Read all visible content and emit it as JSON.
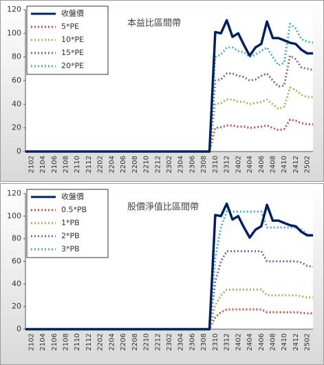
{
  "chart_data": [
    {
      "type": "line",
      "title": "本益比區間帶",
      "categories": [
        null,
        "2102",
        null,
        "2104",
        null,
        "2106",
        null,
        "2108",
        null,
        "2110",
        null,
        "2112",
        null,
        "2202",
        null,
        "2204",
        null,
        "2206",
        null,
        "2208",
        null,
        "2210",
        null,
        "2212",
        null,
        "2302",
        null,
        "2304",
        null,
        "2306",
        null,
        "2308",
        null,
        "2310",
        null,
        "2312",
        null,
        "2402",
        null,
        "2404",
        null,
        "2406",
        null,
        "2408",
        null,
        "2410",
        null,
        "2412",
        null,
        "2502",
        null
      ],
      "ylim": [
        0,
        120
      ],
      "yticks": [
        0,
        20,
        40,
        60,
        80,
        100,
        120
      ],
      "series": [
        {
          "name": "收盤價",
          "color": "#002060",
          "dash": false,
          "values": [
            0,
            0,
            0,
            0,
            0,
            0,
            0,
            0,
            0,
            0,
            0,
            0,
            0,
            0,
            0,
            0,
            0,
            0,
            0,
            0,
            0,
            0,
            0,
            0,
            0,
            0,
            0,
            0,
            0,
            0,
            0,
            0,
            0,
            101,
            100,
            111,
            97,
            100,
            90,
            81,
            88,
            91,
            110,
            96,
            96,
            94,
            92,
            91,
            86,
            83,
            83
          ]
        },
        {
          "name": "5*PE",
          "color": "#c0504d",
          "dash": true,
          "values": [
            0,
            0,
            0,
            0,
            0,
            0,
            0,
            0,
            0,
            0,
            0,
            0,
            0,
            0,
            0,
            0,
            0,
            0,
            0,
            0,
            0,
            0,
            0,
            0,
            0,
            0,
            0,
            0,
            0,
            0,
            0,
            0,
            0,
            20,
            20.5,
            22,
            22,
            21,
            21,
            20,
            20.5,
            21,
            22,
            20,
            18,
            19,
            27,
            26,
            24,
            23,
            23
          ]
        },
        {
          "name": "10*PE",
          "color": "#9bbb59",
          "dash": true,
          "values": [
            0,
            0,
            0,
            0,
            0,
            0,
            0,
            0,
            0,
            0,
            0,
            0,
            0,
            0,
            0,
            0,
            0,
            0,
            0,
            0,
            0,
            0,
            0,
            0,
            0,
            0,
            0,
            0,
            0,
            0,
            0,
            0,
            0,
            40,
            41,
            44,
            44,
            42,
            42,
            40,
            41,
            42,
            44,
            40,
            36,
            38,
            54,
            52,
            48,
            46,
            46
          ]
        },
        {
          "name": "15*PE",
          "color": "#8064a2",
          "dash": true,
          "values": [
            0,
            0,
            0,
            0,
            0,
            0,
            0,
            0,
            0,
            0,
            0,
            0,
            0,
            0,
            0,
            0,
            0,
            0,
            0,
            0,
            0,
            0,
            0,
            0,
            0,
            0,
            0,
            0,
            0,
            0,
            0,
            0,
            0,
            60,
            61,
            66,
            66,
            64,
            63,
            60,
            61,
            64,
            66,
            60,
            55,
            56,
            81,
            78,
            71,
            70,
            69
          ]
        },
        {
          "name": "20*PE",
          "color": "#4bacc6",
          "dash": true,
          "values": [
            0,
            0,
            0,
            0,
            0,
            0,
            0,
            0,
            0,
            0,
            0,
            0,
            0,
            0,
            0,
            0,
            0,
            0,
            0,
            0,
            0,
            0,
            0,
            0,
            0,
            0,
            0,
            0,
            0,
            0,
            0,
            0,
            0,
            80,
            82,
            88,
            88,
            85,
            84,
            80,
            82,
            85,
            88,
            80,
            73,
            75,
            108,
            104,
            95,
            93,
            92
          ]
        }
      ]
    },
    {
      "type": "line",
      "title": "股價淨值比區間帶",
      "categories": [
        null,
        "2102",
        null,
        "2104",
        null,
        "2106",
        null,
        "2108",
        null,
        "2110",
        null,
        "2112",
        null,
        "2202",
        null,
        "2204",
        null,
        "2206",
        null,
        "2208",
        null,
        "2210",
        null,
        "2212",
        null,
        "2302",
        null,
        "2304",
        null,
        "2306",
        null,
        "2308",
        null,
        "2310",
        null,
        "2312",
        null,
        "2402",
        null,
        "2404",
        null,
        "2406",
        null,
        "2408",
        null,
        "2410",
        null,
        "2412",
        null,
        "2502",
        null
      ],
      "ylim": [
        0,
        120
      ],
      "yticks": [
        0,
        20,
        40,
        60,
        80,
        100,
        120
      ],
      "series": [
        {
          "name": "收盤價",
          "color": "#002060",
          "dash": false,
          "values": [
            0,
            0,
            0,
            0,
            0,
            0,
            0,
            0,
            0,
            0,
            0,
            0,
            0,
            0,
            0,
            0,
            0,
            0,
            0,
            0,
            0,
            0,
            0,
            0,
            0,
            0,
            0,
            0,
            0,
            0,
            0,
            0,
            0,
            101,
            100,
            111,
            97,
            100,
            90,
            81,
            88,
            91,
            110,
            96,
            96,
            94,
            92,
            91,
            86,
            83,
            83
          ]
        },
        {
          "name": "0.5*PB",
          "color": "#c0504d",
          "dash": true,
          "values": [
            0,
            0,
            0,
            0,
            0,
            0,
            0,
            0,
            0,
            0,
            0,
            0,
            0,
            0,
            0,
            0,
            0,
            0,
            0,
            0,
            0,
            0,
            0,
            0,
            0,
            0,
            0,
            0,
            0,
            0,
            0,
            0,
            0,
            10.5,
            15,
            17.5,
            17.5,
            17.5,
            17.5,
            17.5,
            17.5,
            17.5,
            15,
            15,
            15,
            15,
            15,
            15,
            14.5,
            14,
            14
          ]
        },
        {
          "name": "1*PB",
          "color": "#9bbb59",
          "dash": true,
          "values": [
            0,
            0,
            0,
            0,
            0,
            0,
            0,
            0,
            0,
            0,
            0,
            0,
            0,
            0,
            0,
            0,
            0,
            0,
            0,
            0,
            0,
            0,
            0,
            0,
            0,
            0,
            0,
            0,
            0,
            0,
            0,
            0,
            0,
            21,
            30,
            35,
            35,
            35,
            35,
            35,
            35,
            35,
            30,
            30,
            30,
            30,
            30,
            30,
            29,
            28,
            28
          ]
        },
        {
          "name": "2*PB",
          "color": "#8064a2",
          "dash": true,
          "values": [
            0,
            0,
            0,
            0,
            0,
            0,
            0,
            0,
            0,
            0,
            0,
            0,
            0,
            0,
            0,
            0,
            0,
            0,
            0,
            0,
            0,
            0,
            0,
            0,
            0,
            0,
            0,
            0,
            0,
            0,
            0,
            0,
            0,
            42,
            60,
            69,
            69,
            69,
            69,
            69,
            69,
            69,
            60,
            60,
            60,
            60,
            60,
            60,
            59,
            56,
            55
          ]
        },
        {
          "name": "3*PB",
          "color": "#4bacc6",
          "dash": true,
          "values": [
            0,
            0,
            0,
            0,
            0,
            0,
            0,
            0,
            0,
            0,
            0,
            0,
            0,
            0,
            0,
            0,
            0,
            0,
            0,
            0,
            0,
            0,
            0,
            0,
            0,
            0,
            0,
            0,
            0,
            0,
            0,
            0,
            0,
            63,
            90,
            104,
            104,
            104,
            104,
            104,
            104,
            104,
            90,
            90,
            90,
            90,
            90,
            90,
            88,
            84,
            83
          ]
        }
      ]
    }
  ]
}
